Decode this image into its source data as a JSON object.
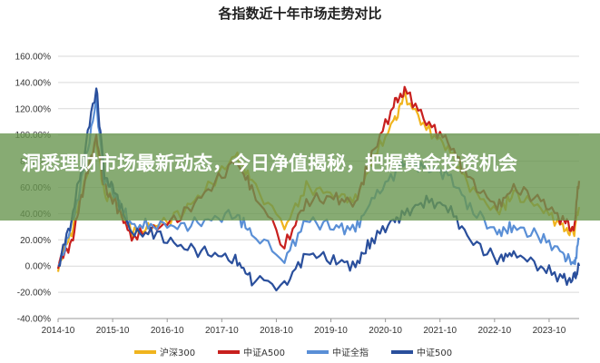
{
  "chart_data": {
    "type": "line",
    "title": "各指数近十年市场走势对比",
    "xlabel": "",
    "ylabel": "",
    "ylim": [
      -40,
      160
    ],
    "y_ticks": [
      "160.00%",
      "140.00%",
      "120.00%",
      "100.00%",
      "80.00%",
      "60.00%",
      "40.00%",
      "20.00%",
      "0.00%",
      "-20.00%",
      "-40.00%"
    ],
    "x_ticks": [
      "2014-10",
      "2015-10",
      "2016-10",
      "2017-10",
      "2018-10",
      "2019-10",
      "2020-10",
      "2021-10",
      "2022-10",
      "2023-10"
    ],
    "x_range": [
      2014.75,
      2024.3
    ],
    "grid": "horizontal",
    "legend_position": "bottom",
    "series": [
      {
        "name": "沪深300",
        "color": "#f0b41e",
        "x": [
          2014.75,
          2015.0,
          2015.2,
          2015.45,
          2015.6,
          2015.8,
          2016.1,
          2016.5,
          2017.0,
          2017.5,
          2018.0,
          2018.3,
          2018.9,
          2019.3,
          2019.8,
          2020.2,
          2020.5,
          2020.9,
          2021.1,
          2021.5,
          2021.9,
          2022.3,
          2022.8,
          2023.1,
          2023.6,
          2024.0,
          2024.2,
          2024.3
        ],
        "values": [
          0,
          25,
          60,
          95,
          55,
          50,
          25,
          30,
          40,
          60,
          85,
          65,
          30,
          60,
          55,
          50,
          80,
          110,
          130,
          105,
          90,
          60,
          40,
          55,
          45,
          30,
          25,
          45
        ]
      },
      {
        "name": "中证A500",
        "color": "#c8201e",
        "x": [
          2014.75,
          2015.0,
          2015.2,
          2015.45,
          2015.6,
          2015.8,
          2016.1,
          2016.5,
          2017.0,
          2017.5,
          2018.0,
          2018.3,
          2018.9,
          2019.3,
          2019.8,
          2020.2,
          2020.5,
          2020.9,
          2021.1,
          2021.5,
          2021.9,
          2022.3,
          2022.8,
          2023.1,
          2023.6,
          2024.0,
          2024.2,
          2024.3
        ],
        "values": [
          0,
          20,
          55,
          100,
          60,
          48,
          22,
          28,
          38,
          58,
          80,
          60,
          15,
          50,
          52,
          48,
          85,
          122,
          135,
          110,
          95,
          65,
          45,
          60,
          50,
          35,
          28,
          65
        ]
      },
      {
        "name": "中证全指",
        "color": "#5a8fd6",
        "x": [
          2014.75,
          2015.0,
          2015.2,
          2015.45,
          2015.6,
          2015.8,
          2016.1,
          2016.5,
          2017.0,
          2017.5,
          2018.0,
          2018.3,
          2018.9,
          2019.3,
          2019.8,
          2020.2,
          2020.5,
          2020.9,
          2021.1,
          2021.5,
          2021.9,
          2022.3,
          2022.8,
          2023.1,
          2023.6,
          2024.0,
          2024.2,
          2024.3
        ],
        "values": [
          0,
          30,
          70,
          125,
          65,
          55,
          30,
          32,
          30,
          35,
          40,
          25,
          5,
          35,
          30,
          28,
          50,
          70,
          80,
          75,
          70,
          45,
          25,
          30,
          22,
          10,
          0,
          20
        ]
      },
      {
        "name": "中证500",
        "color": "#2a4f9c",
        "x": [
          2014.75,
          2015.0,
          2015.2,
          2015.45,
          2015.6,
          2015.8,
          2016.1,
          2016.5,
          2017.0,
          2017.5,
          2018.0,
          2018.3,
          2018.9,
          2019.3,
          2019.8,
          2020.2,
          2020.5,
          2020.9,
          2021.1,
          2021.5,
          2021.9,
          2022.3,
          2022.8,
          2023.1,
          2023.6,
          2024.0,
          2024.2,
          2024.3
        ],
        "values": [
          0,
          35,
          80,
          135,
          70,
          55,
          25,
          25,
          15,
          10,
          5,
          -10,
          -15,
          10,
          5,
          0,
          20,
          35,
          40,
          50,
          45,
          20,
          5,
          10,
          0,
          -10,
          -10,
          0
        ]
      }
    ]
  },
  "overlay": {
    "headline": "洞悉理财市场最新动态，今日净值揭秘，把握黄金投资机会"
  }
}
